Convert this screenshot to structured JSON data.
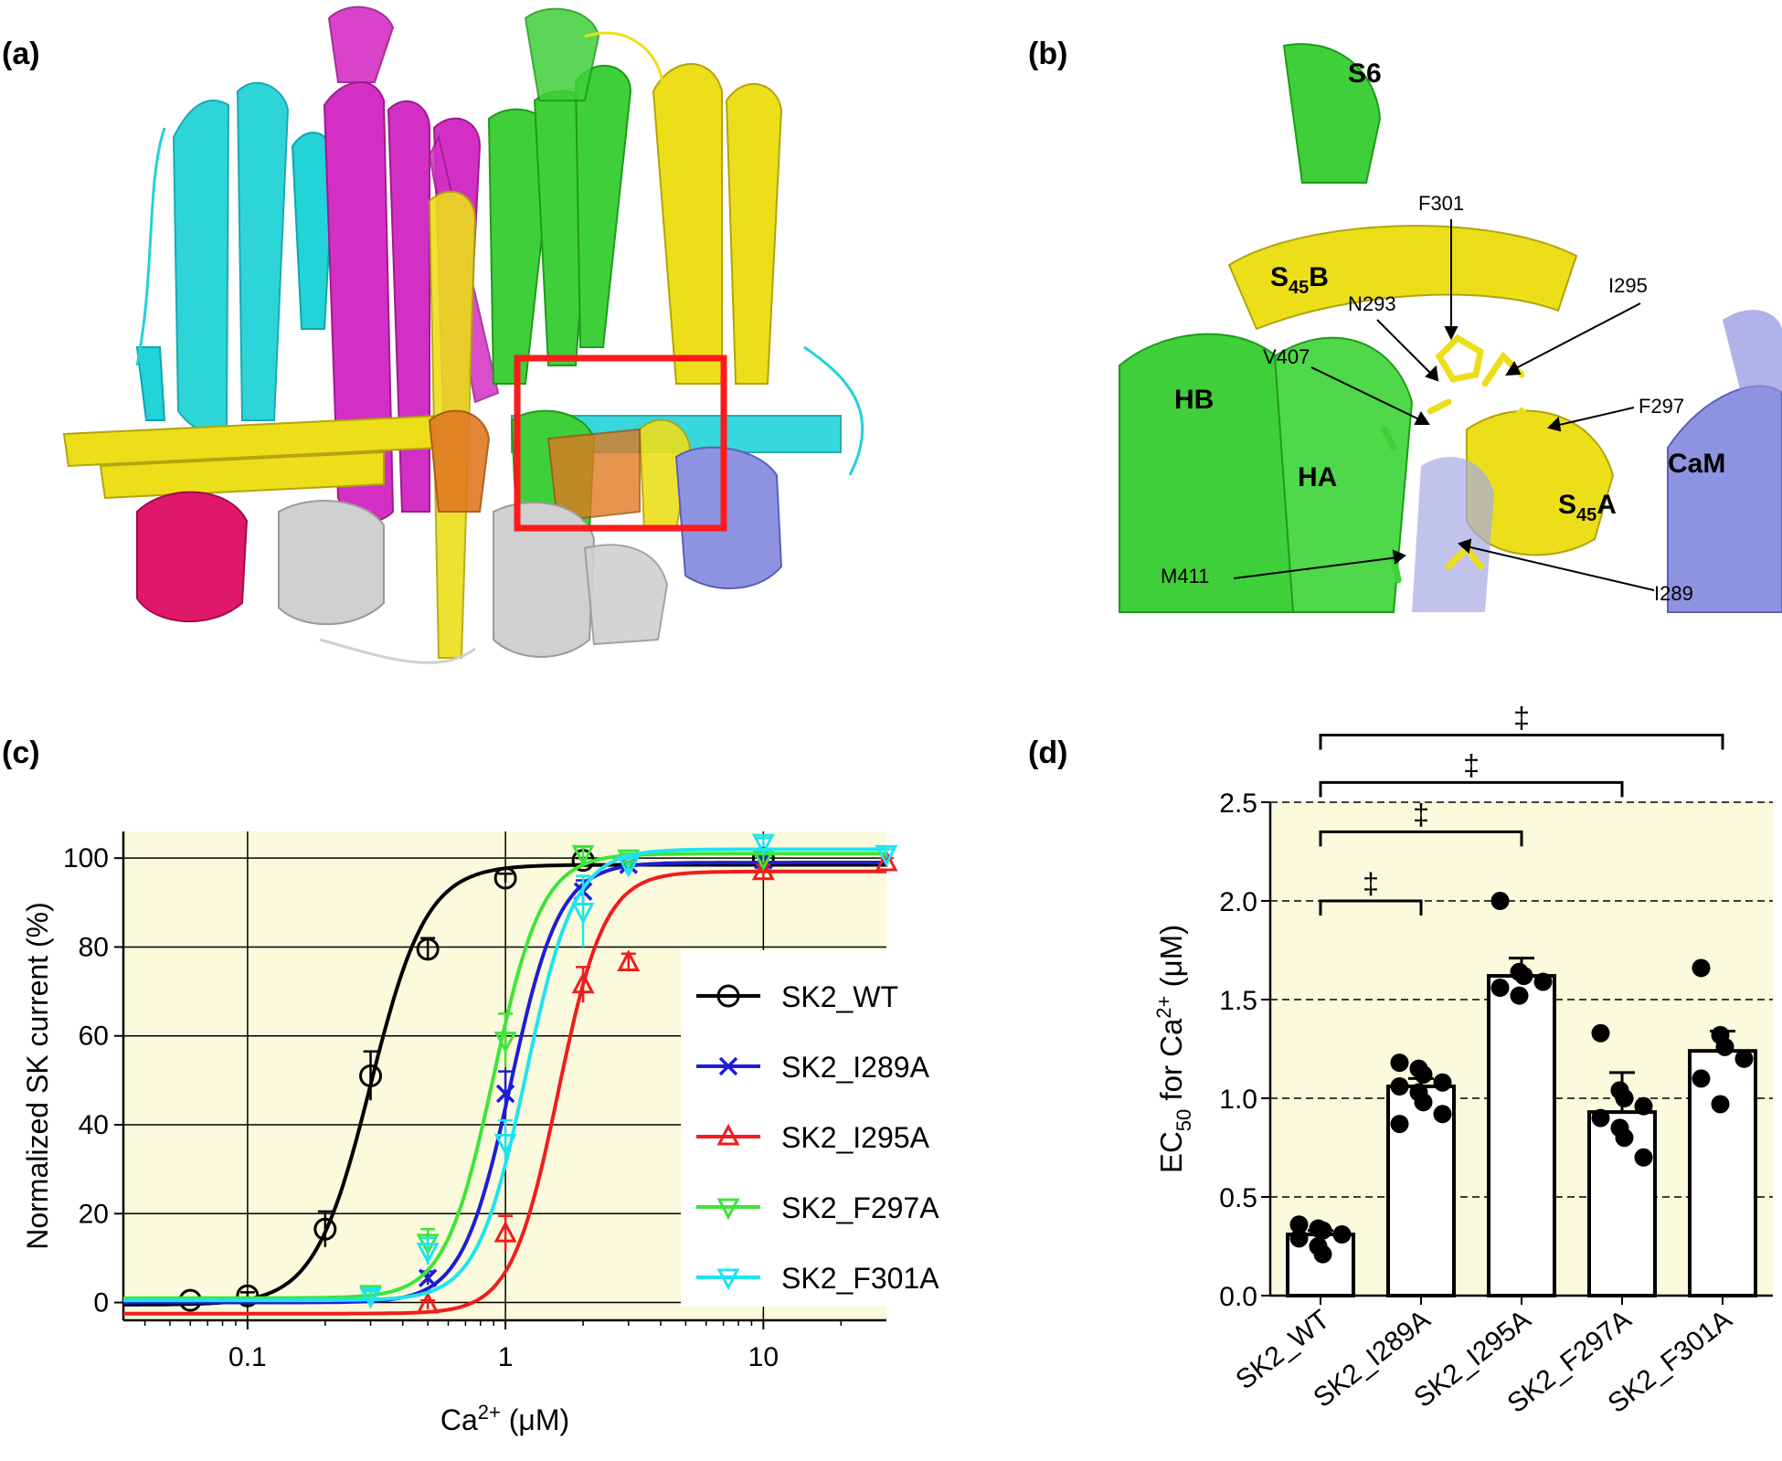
{
  "panels": {
    "a": "(a)",
    "b": "(b)",
    "c": "(c)",
    "d": "(d)"
  },
  "structure_b": {
    "labels": [
      "S6",
      "F301",
      "I295",
      "N293",
      "V407",
      "F297",
      "HB",
      "HA",
      "CaM",
      "M411",
      "I289"
    ],
    "s45b": {
      "base": "S",
      "sub": "45",
      "tail": "B"
    },
    "s45a": {
      "base": "S",
      "sub": "45",
      "tail": "A"
    }
  },
  "colors": {
    "cyan": "#22d3d8",
    "magenta": "#d42fc4",
    "green": "#3fcf3a",
    "yellow": "#ecdf1a",
    "slate": "#8d93e0",
    "grey": "#d0d0d0",
    "orange": "#e07a22",
    "deeppink": "#e0186a",
    "box_red": "#ff1a1a",
    "plot_bg": "#fcfadc"
  },
  "chart_data": [
    {
      "type": "line",
      "panel": "(c)",
      "scale_x": "log",
      "xlim": [
        0.033,
        30
      ],
      "ylim": [
        -4,
        106
      ],
      "xticks": [
        0.1,
        1,
        10
      ],
      "xtick_labels": [
        "0.1",
        "1",
        "10"
      ],
      "yticks": [
        0,
        20,
        40,
        60,
        80,
        100
      ],
      "ytick_labels": [
        "0",
        "20",
        "40",
        "60",
        "80",
        "100"
      ],
      "ylabel": "Normalized SK current (%)",
      "xlabel": {
        "base": "Ca",
        "sup": "2+",
        "tail": " (μM)"
      },
      "grid": true,
      "legend_position": "center-right",
      "series": [
        {
          "name": "SK2_WT",
          "color": "#000000",
          "marker": "circle",
          "x": [
            0.06,
            0.1,
            0.2,
            0.3,
            0.5,
            1,
            2,
            10
          ],
          "y": [
            0.5,
            1.5,
            16.5,
            51,
            79.5,
            95.5,
            99.5,
            100
          ],
          "err": [
            0.5,
            0.8,
            4,
            5.5,
            2.5,
            1,
            0.5,
            0.5
          ],
          "fit": {
            "bottom": -0.5,
            "top": 98.5,
            "ec50": 0.3,
            "hill": 4.0
          }
        },
        {
          "name": "SK2_I289A",
          "color": "#1d1dd6",
          "marker": "x",
          "x": [
            0.5,
            1,
            2,
            3,
            10
          ],
          "y": [
            5.5,
            47,
            92.5,
            98.5,
            99.5
          ],
          "err": [
            1.5,
            5,
            2.5,
            1.5,
            1
          ],
          "fit": {
            "bottom": 0,
            "top": 99,
            "ec50": 1.05,
            "hill": 4.6
          }
        },
        {
          "name": "SK2_I295A",
          "color": "#ef1d1d",
          "marker": "triangle-up",
          "x": [
            0.5,
            1,
            2,
            3,
            10,
            30
          ],
          "y": [
            -0.5,
            15.5,
            71.5,
            76.5,
            97,
            99
          ],
          "err": [
            1,
            4,
            4,
            2,
            1.5,
            1
          ],
          "fit": {
            "bottom": -2.5,
            "top": 97,
            "ec50": 1.6,
            "hill": 4.8
          }
        },
        {
          "name": "SK2_F297A",
          "color": "#3fe43a",
          "marker": "triangle-down",
          "x": [
            0.3,
            0.5,
            1,
            2,
            3,
            10
          ],
          "y": [
            2,
            13.5,
            59,
            101,
            100,
            100
          ],
          "err": [
            1,
            3,
            6,
            1.5,
            1,
            1
          ],
          "fit": {
            "bottom": 1,
            "top": 101,
            "ec50": 0.9,
            "hill": 4.6
          }
        },
        {
          "name": "SK2_F301A",
          "color": "#1fe3f0",
          "marker": "triangle-down",
          "x": [
            0.3,
            0.5,
            1,
            2,
            3,
            10,
            30
          ],
          "y": [
            1.5,
            11.5,
            36,
            88,
            98.5,
            103.5,
            101
          ],
          "err": [
            1,
            3,
            5,
            8,
            2,
            1,
            1
          ],
          "fit": {
            "bottom": 0.5,
            "top": 102,
            "ec50": 1.2,
            "hill": 4.6
          }
        }
      ]
    },
    {
      "type": "bar",
      "panel": "(d)",
      "ylim": [
        0,
        2.5
      ],
      "yticks": [
        0.0,
        0.5,
        1.0,
        1.5,
        2.0,
        2.5
      ],
      "ytick_labels": [
        "0.0",
        "0.5",
        "1.0",
        "1.5",
        "2.0",
        "2.5"
      ],
      "ylabel": {
        "base": "EC",
        "sub": "50",
        "mid": " for Ca",
        "sup": "2+",
        "tail": " (μM)"
      },
      "grid_y": "dashed",
      "categories": [
        "SK2_WT",
        "SK2_I289A",
        "SK2_I295A",
        "SK2_F297A",
        "SK2_F301A"
      ],
      "values": [
        0.31,
        1.06,
        1.62,
        0.93,
        1.24
      ],
      "sem": [
        0.02,
        0.04,
        0.09,
        0.2,
        0.1
      ],
      "points": [
        [
          0.36,
          0.34,
          0.33,
          0.31,
          0.29,
          0.25,
          0.21
        ],
        [
          1.18,
          1.15,
          1.12,
          1.08,
          1.06,
          1.03,
          0.98,
          0.92,
          0.87
        ],
        [
          2.0,
          1.64,
          1.62,
          1.59,
          1.56,
          1.52
        ],
        [
          1.33,
          1.04,
          1.0,
          0.96,
          0.9,
          0.85,
          0.8,
          0.7
        ],
        [
          1.66,
          1.32,
          1.26,
          1.2,
          1.1,
          0.97
        ]
      ],
      "significance": [
        {
          "from": 0,
          "to": 1,
          "label": "‡"
        },
        {
          "from": 0,
          "to": 2,
          "label": "‡"
        },
        {
          "from": 0,
          "to": 3,
          "label": "‡"
        },
        {
          "from": 0,
          "to": 4,
          "label": "‡"
        }
      ]
    }
  ]
}
